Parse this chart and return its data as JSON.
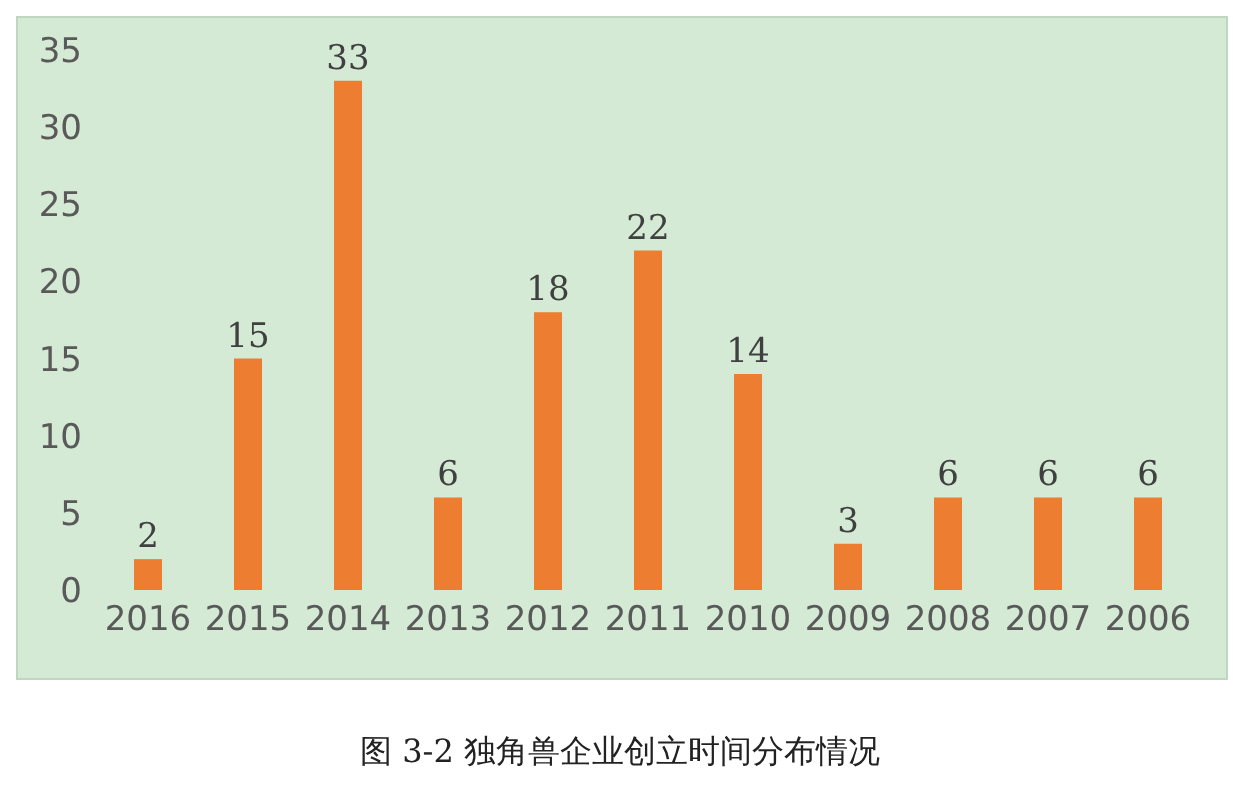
{
  "chart_data": {
    "type": "bar",
    "title": "图 3-2 独角兽企业创立时间分布情况",
    "categories": [
      "2016",
      "2015",
      "2014",
      "2013",
      "2012",
      "2011",
      "2010",
      "2009",
      "2008",
      "2007",
      "2006"
    ],
    "values": [
      2,
      15,
      33,
      6,
      18,
      22,
      14,
      3,
      6,
      6,
      6
    ],
    "color": "#ed7d31",
    "ylim": [
      0,
      35
    ],
    "yticks": [
      0,
      5,
      10,
      15,
      20,
      25,
      30,
      35
    ],
    "grid": false,
    "legend": false,
    "data_labels": true
  }
}
